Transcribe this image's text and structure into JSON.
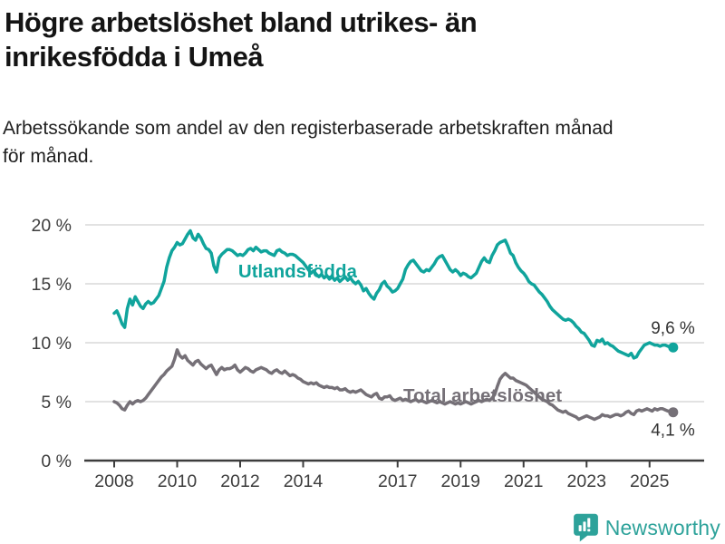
{
  "header": {
    "title_lines": [
      "Högre arbetslöshet bland utrikes- än",
      "inrikesfödda i Umeå"
    ],
    "subtitle_lines": [
      "Arbetssökande som andel av den registerbaserade arbetskraften månad",
      "för månad."
    ]
  },
  "chart_data": {
    "type": "line",
    "title": "Högre arbetslöshet bland utrikes- än inrikesfödda i Umeå",
    "subtitle": "Arbetssökande som andel av den registerbaserade arbetskraften månad för månad.",
    "unit": "%",
    "x_start_year": 2008,
    "points_per_year": 12,
    "x_ticks": [
      2008,
      2010,
      2012,
      2014,
      2017,
      2019,
      2021,
      2023,
      2025
    ],
    "y_ticks": [
      0,
      5,
      10,
      15,
      20
    ],
    "y_tick_suffix": " %",
    "ylim": [
      0,
      20
    ],
    "xlim": [
      2007.9,
      2026.4
    ],
    "grid": "horizontal",
    "legend_position": "inline-labels",
    "colors": {
      "grid": "#d9d9d9",
      "axis": "#3d3d3d",
      "tick_label": "#3d3d3d",
      "end_label": "#333333"
    },
    "series": [
      {
        "id": "utlandsfodda",
        "name": "Utlandsfödda",
        "color": "#10a49c",
        "end_value_label": "9,6 %",
        "label_anchor": {
          "year": 2011.94,
          "value": 15.54
        },
        "values": [
          12.5,
          12.7,
          12.2,
          11.6,
          11.3,
          12.9,
          13.7,
          13.2,
          13.9,
          13.5,
          13.1,
          12.9,
          13.3,
          13.5,
          13.3,
          13.4,
          13.7,
          14.0,
          14.6,
          15.2,
          16.4,
          17.2,
          17.8,
          18.1,
          18.5,
          18.3,
          18.4,
          18.8,
          19.2,
          19.5,
          18.9,
          18.7,
          19.2,
          18.9,
          18.4,
          18.0,
          17.9,
          17.6,
          16.5,
          16.0,
          17.2,
          17.5,
          17.7,
          17.9,
          17.9,
          17.8,
          17.6,
          17.4,
          17.5,
          17.4,
          17.6,
          17.9,
          18.0,
          17.8,
          18.1,
          17.9,
          17.7,
          17.8,
          17.8,
          17.6,
          17.5,
          17.4,
          17.8,
          17.9,
          17.7,
          17.6,
          17.4,
          17.5,
          17.5,
          17.4,
          17.2,
          17.0,
          16.8,
          16.5,
          16.2,
          15.9,
          16.1,
          15.8,
          15.6,
          15.8,
          15.5,
          15.7,
          15.4,
          15.6,
          15.3,
          15.5,
          15.2,
          15.4,
          15.6,
          15.3,
          15.5,
          15.2,
          15.0,
          15.2,
          14.9,
          14.4,
          14.6,
          14.2,
          13.9,
          13.7,
          14.2,
          14.5,
          15.0,
          15.2,
          14.8,
          14.6,
          14.3,
          14.4,
          14.6,
          15.0,
          15.4,
          16.2,
          16.6,
          16.9,
          17.0,
          16.7,
          16.4,
          16.1,
          16.0,
          16.2,
          16.1,
          16.4,
          16.7,
          17.1,
          17.3,
          17.4,
          17.0,
          16.6,
          16.2,
          16.0,
          16.2,
          16.0,
          15.7,
          15.9,
          15.8,
          15.6,
          15.5,
          15.7,
          15.9,
          16.4,
          16.9,
          17.2,
          16.9,
          16.8,
          17.4,
          17.8,
          18.3,
          18.5,
          18.6,
          18.7,
          18.2,
          17.6,
          17.4,
          16.8,
          16.4,
          16.1,
          15.9,
          15.6,
          15.2,
          15.0,
          14.9,
          14.6,
          14.3,
          14.1,
          13.8,
          13.5,
          13.1,
          12.8,
          12.6,
          12.4,
          12.2,
          12.0,
          11.9,
          12.0,
          11.9,
          11.7,
          11.4,
          11.2,
          10.9,
          10.8,
          10.5,
          10.2,
          9.8,
          9.7,
          10.2,
          10.1,
          10.3,
          9.9,
          10.0,
          9.8,
          9.7,
          9.5,
          9.3,
          9.2,
          9.1,
          9.0,
          8.9,
          9.1,
          8.7,
          8.8,
          9.2,
          9.5,
          9.8,
          9.9,
          10.0,
          9.9,
          9.8,
          9.8,
          9.7,
          9.8,
          9.8,
          9.7,
          9.6,
          9.6
        ]
      },
      {
        "id": "total-arbetsloshet",
        "name": "Total arbetslöshet",
        "color": "#757077",
        "end_value_label": "4,1 %",
        "label_anchor": {
          "year": 2017.18,
          "value": 5.0
        },
        "values": [
          5.0,
          4.9,
          4.7,
          4.4,
          4.3,
          4.7,
          5.0,
          4.8,
          5.0,
          5.1,
          5.0,
          5.1,
          5.3,
          5.6,
          5.9,
          6.2,
          6.5,
          6.8,
          7.1,
          7.3,
          7.6,
          7.8,
          8.0,
          8.6,
          9.4,
          8.9,
          8.7,
          8.9,
          8.5,
          8.3,
          8.1,
          8.4,
          8.5,
          8.2,
          8.0,
          7.8,
          8.0,
          8.1,
          7.7,
          7.3,
          7.7,
          7.9,
          7.7,
          7.8,
          7.8,
          7.9,
          8.1,
          7.7,
          7.5,
          7.7,
          7.9,
          7.8,
          7.6,
          7.5,
          7.7,
          7.8,
          7.9,
          7.8,
          7.7,
          7.5,
          7.4,
          7.6,
          7.7,
          7.5,
          7.4,
          7.6,
          7.4,
          7.2,
          7.3,
          7.2,
          7.0,
          6.9,
          6.7,
          6.6,
          6.5,
          6.6,
          6.5,
          6.6,
          6.4,
          6.3,
          6.2,
          6.3,
          6.2,
          6.2,
          6.1,
          6.2,
          6.0,
          6.0,
          6.1,
          5.9,
          5.8,
          5.9,
          5.8,
          5.9,
          6.0,
          5.8,
          5.6,
          5.5,
          5.4,
          5.6,
          5.7,
          5.3,
          5.2,
          5.4,
          5.4,
          5.5,
          5.2,
          5.1,
          5.2,
          5.3,
          5.1,
          5.2,
          5.1,
          5.0,
          5.1,
          5.2,
          5.0,
          5.1,
          5.0,
          4.9,
          5.0,
          5.1,
          5.0,
          4.9,
          5.0,
          4.9,
          4.8,
          4.9,
          5.0,
          4.9,
          4.8,
          4.9,
          4.8,
          4.9,
          5.0,
          4.9,
          4.8,
          4.9,
          5.0,
          5.1,
          5.0,
          5.1,
          5.2,
          5.1,
          5.3,
          5.6,
          6.3,
          6.9,
          7.2,
          7.4,
          7.2,
          7.0,
          7.0,
          6.8,
          6.7,
          6.6,
          6.5,
          6.4,
          6.2,
          6.0,
          5.8,
          5.6,
          5.4,
          5.2,
          5.1,
          5.0,
          4.8,
          4.7,
          4.5,
          4.3,
          4.2,
          4.1,
          4.2,
          4.0,
          3.9,
          3.8,
          3.7,
          3.5,
          3.6,
          3.7,
          3.8,
          3.7,
          3.6,
          3.5,
          3.6,
          3.7,
          3.9,
          3.8,
          3.8,
          3.7,
          3.8,
          3.9,
          3.9,
          3.8,
          3.9,
          4.1,
          4.2,
          4.0,
          3.9,
          4.2,
          4.3,
          4.2,
          4.3,
          4.4,
          4.3,
          4.2,
          4.4,
          4.3,
          4.4,
          4.4,
          4.3,
          4.2,
          4.2,
          4.1
        ]
      }
    ]
  },
  "branding": {
    "logo_text": "Newsworthy",
    "logo_color": "#2da29a"
  }
}
